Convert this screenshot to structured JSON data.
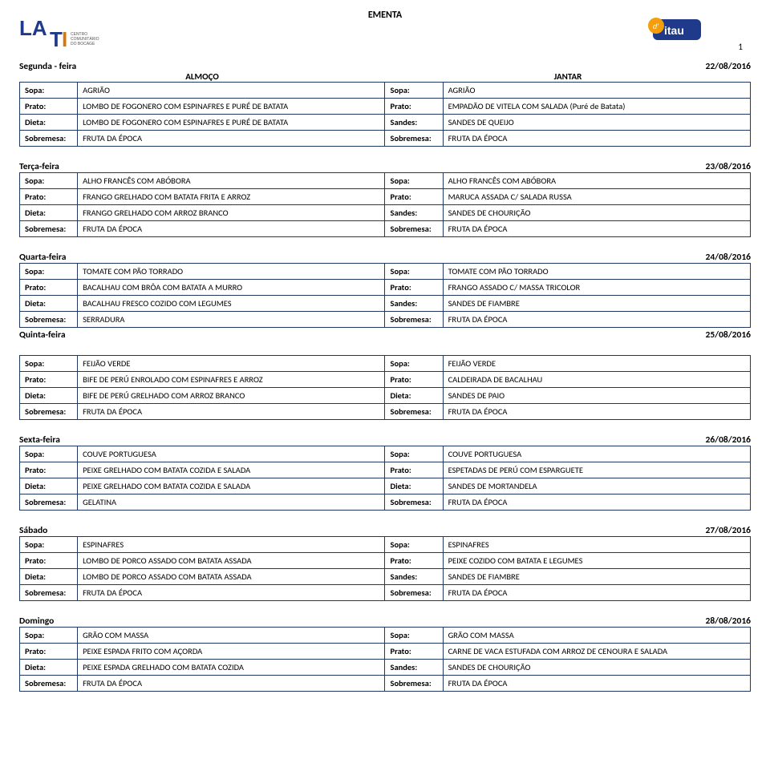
{
  "title": "EMENTA",
  "page_number": "1",
  "meal_header_left": "ALMOÇO",
  "meal_header_right": "JANTAR",
  "row_labels": {
    "sopa": "Sopa:",
    "prato": "Prato:",
    "dieta": "Dieta:",
    "sobremesa": "Sobremesa:",
    "sandes": "Sandes:"
  },
  "colors": {
    "border": "#1f3864",
    "text": "#000000",
    "background": "#ffffff"
  },
  "days": [
    {
      "name": "Segunda - feira",
      "date": "22/08/2016",
      "show_meal_headers": true,
      "rows": [
        {
          "l_lbl": "Sopa:",
          "l_val": "AGRIÃO",
          "r_lbl": "Sopa:",
          "r_val": "AGRIÃO"
        },
        {
          "l_lbl": "Prato:",
          "l_val": "LOMBO DE FOGONERO COM ESPINAFRES E PURÉ DE BATATA",
          "r_lbl": "Prato:",
          "r_val": "EMPADÃO DE VITELA COM SALADA (Puré de Batata)"
        },
        {
          "l_lbl": "Dieta:",
          "l_val": "LOMBO DE FOGONERO COM ESPINAFRES E PURÉ DE BATATA",
          "r_lbl": "Sandes:",
          "r_val": "SANDES DE QUEIJO"
        },
        {
          "l_lbl": "Sobremesa:",
          "l_val": "FRUTA DA ÉPOCA",
          "r_lbl": "Sobremesa:",
          "r_val": "FRUTA DA ÉPOCA"
        }
      ]
    },
    {
      "name": "Terça-feira",
      "date": "23/08/2016",
      "rows": [
        {
          "l_lbl": "Sopa:",
          "l_val": "ALHO FRANCÊS COM ABÓBORA",
          "r_lbl": "Sopa:",
          "r_val": "ALHO FRANCÊS COM ABÓBORA"
        },
        {
          "l_lbl": "Prato:",
          "l_val": "FRANGO GRELHADO COM BATATA FRITA E ARROZ",
          "r_lbl": "Prato:",
          "r_val": "MARUCA ASSADA C/ SALADA RUSSA"
        },
        {
          "l_lbl": "Dieta:",
          "l_val": "FRANGO GRELHADO COM  ARROZ BRANCO",
          "r_lbl": "Sandes:",
          "r_val": "SANDES DE CHOURIÇÃO"
        },
        {
          "l_lbl": "Sobremesa:",
          "l_val": "FRUTA DA ÉPOCA",
          "r_lbl": "Sobremesa:",
          "r_val": "FRUTA DA ÉPOCA"
        }
      ]
    },
    {
      "name": "Quarta-feira",
      "date": "24/08/2016",
      "rows": [
        {
          "l_lbl": "Sopa:",
          "l_val": "TOMATE COM PÃO TORRADO",
          "r_lbl": "Sopa:",
          "r_val": "TOMATE COM PÃO TORRADO"
        },
        {
          "l_lbl": "Prato:",
          "l_val": "BACALHAU COM BRÔA COM BATATA A MURRO",
          "r_lbl": "Prato:",
          "r_val": "FRANGO ASSADO C/ MASSA TRICOLOR"
        },
        {
          "l_lbl": "Dieta:",
          "l_val": "BACALHAU FRESCO COZIDO COM LEGUMES",
          "r_lbl": "Sandes:",
          "r_val": "SANDES DE FIAMBRE"
        },
        {
          "l_lbl": "Sobremesa:",
          "l_val": "SERRADURA",
          "r_lbl": "Sobremesa:",
          "r_val": "FRUTA DA ÉPOCA"
        }
      ],
      "trailing": {
        "name": "Quinta-feira",
        "date": "25/08/2016"
      }
    },
    {
      "name": "",
      "date": "",
      "skip_header": true,
      "rows": [
        {
          "l_lbl": "Sopa:",
          "l_val": "FEIJÃO VERDE",
          "r_lbl": "Sopa:",
          "r_val": "FEIJÃO VERDE"
        },
        {
          "l_lbl": "Prato:",
          "l_val": "BIFE DE PERÚ ENROLADO COM ESPINAFRES E ARROZ",
          "r_lbl": "Prato:",
          "r_val": "CALDEIRADA DE BACALHAU"
        },
        {
          "l_lbl": "Dieta:",
          "l_val": "BIFE DE PERÚ GRELHADO COM ARROZ BRANCO",
          "r_lbl": "Dieta:",
          "r_val": "SANDES DE PAIO"
        },
        {
          "l_lbl": "Sobremesa:",
          "l_val": "FRUTA DA ÉPOCA",
          "r_lbl": "Sobremesa:",
          "r_val": "FRUTA DA ÉPOCA"
        }
      ]
    },
    {
      "name": "Sexta-feira",
      "date": "26/08/2016",
      "rows": [
        {
          "l_lbl": "Sopa:",
          "l_val": "COUVE PORTUGUESA",
          "r_lbl": "Sopa:",
          "r_val": "COUVE PORTUGUESA"
        },
        {
          "l_lbl": "Prato:",
          "l_val": "PEIXE GRELHADO COM BATATA COZIDA E SALADA",
          "r_lbl": "Prato:",
          "r_val": "ESPETADAS DE PERÚ COM ESPARGUETE"
        },
        {
          "l_lbl": "Dieta:",
          "l_val": "PEIXE GRELHADO COM BATATA COZIDA E SALADA",
          "r_lbl": "Dieta:",
          "r_val": "SANDES DE MORTANDELA"
        },
        {
          "l_lbl": "Sobremesa:",
          "l_val": "GELATINA",
          "r_lbl": "Sobremesa:",
          "r_val": "FRUTA DA ÉPOCA"
        }
      ]
    },
    {
      "name": "Sábado",
      "date": "27/08/2016",
      "rows": [
        {
          "l_lbl": "Sopa:",
          "l_val": "ESPINAFRES",
          "r_lbl": "Sopa:",
          "r_val": "ESPINAFRES"
        },
        {
          "l_lbl": "Prato:",
          "l_val": "LOMBO DE PORCO ASSADO COM BATATA ASSADA",
          "r_lbl": "Prato:",
          "r_val": "PEIXE COZIDO COM BATATA  E LEGUMES"
        },
        {
          "l_lbl": "Dieta:",
          "l_val": "LOMBO DE PORCO ASSADO COM BATATA ASSADA",
          "r_lbl": "Sandes:",
          "r_val": "SANDES DE FIAMBRE"
        },
        {
          "l_lbl": "Sobremesa:",
          "l_val": "FRUTA DA ÉPOCA",
          "r_lbl": "Sobremesa:",
          "r_val": "FRUTA DA ÉPOCA"
        }
      ]
    },
    {
      "name": "Domingo",
      "date": "28/08/2016",
      "rows": [
        {
          "l_lbl": "Sopa:",
          "l_val": "GRÃO COM MASSA",
          "r_lbl": "Sopa:",
          "r_val": "GRÃO COM MASSA"
        },
        {
          "l_lbl": "Prato:",
          "l_val": "PEIXE ESPADA FRITO COM AÇORDA",
          "r_lbl": "Prato:",
          "r_val": "CARNE DE VACA ESTUFADA COM ARROZ DE CENOURA E SALADA"
        },
        {
          "l_lbl": "Dieta:",
          "l_val": "PEIXE ESPADA GRELHADO COM BATATA COZIDA",
          "r_lbl": "Sandes:",
          "r_val": "SANDES DE CHOURIÇÃO"
        },
        {
          "l_lbl": "Sobremesa:",
          "l_val": "FRUTA DA ÉPOCA",
          "r_lbl": "Sobremesa:",
          "r_val": "FRUTA DA ÉPOCA"
        }
      ]
    }
  ]
}
